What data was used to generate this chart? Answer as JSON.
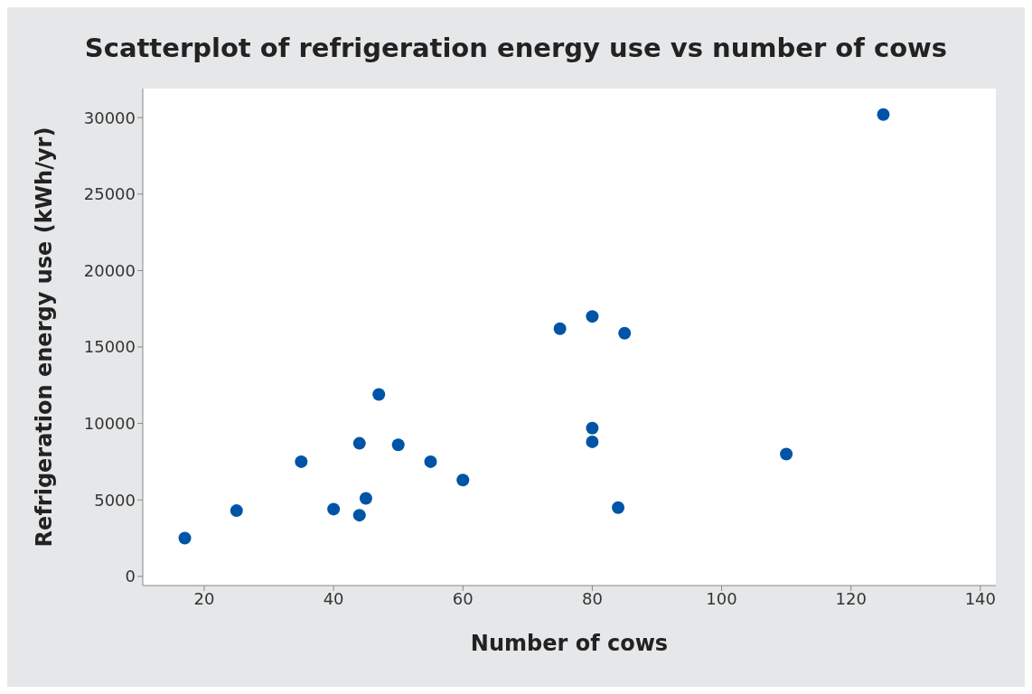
{
  "chart_data": {
    "type": "scatter",
    "title": "Scatterplot of refrigeration energy use vs number of cows",
    "xlabel": "Number of cows",
    "ylabel": "Refrigeration energy use (kWh/yr)",
    "x": [
      17,
      25,
      35,
      40,
      44,
      44,
      45,
      47,
      50,
      55,
      60,
      75,
      80,
      80,
      80,
      84,
      85,
      110,
      125
    ],
    "values": [
      2500,
      4300,
      7500,
      4400,
      8700,
      4000,
      5100,
      11900,
      8600,
      7500,
      6300,
      16200,
      17000,
      9700,
      8800,
      4500,
      15900,
      8000,
      30200
    ],
    "color": "#0054a6",
    "marker": "circle",
    "grid": false,
    "xlim": [
      10.5,
      142.4
    ],
    "xticks": [
      20,
      40,
      60,
      80,
      100,
      120,
      140
    ],
    "ylim": [
      -600,
      31900
    ],
    "yticks": [
      0,
      5000,
      10000,
      15000,
      20000,
      25000,
      30000
    ]
  }
}
